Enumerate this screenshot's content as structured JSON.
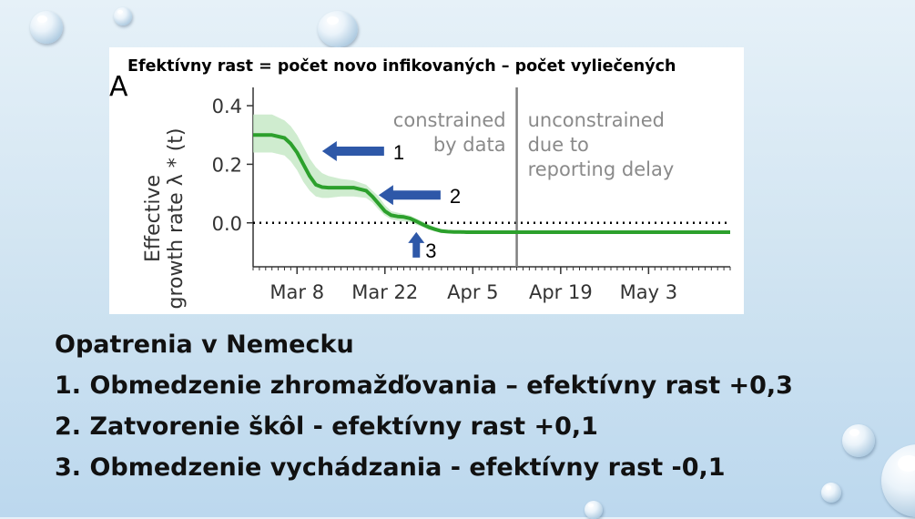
{
  "chart_data": {
    "type": "line",
    "title": "Efektívny rast = počet novo infikovaných – počet vyliečených",
    "panel_label": "A",
    "ylabel_line1": "Effective",
    "ylabel_line2": "growth rate λ * (t)",
    "yticks": [
      "0.4",
      "0.2",
      "0.0"
    ],
    "ylim": [
      -0.15,
      0.45
    ],
    "xticks": [
      "Mar 8",
      "Mar 22",
      "Apr 5",
      "Apr 19",
      "May 3"
    ],
    "x_range_days": [
      0,
      76
    ],
    "series": [
      {
        "color": "#2ca02c",
        "x": [
          0,
          3,
          5,
          6,
          7,
          8,
          9,
          10,
          11,
          12,
          14,
          16,
          18,
          19,
          20,
          21,
          22,
          23,
          24,
          25,
          26,
          27,
          28,
          29,
          30,
          31,
          32,
          33,
          34,
          35,
          36,
          40,
          50,
          60,
          70,
          76
        ],
        "y": [
          0.3,
          0.3,
          0.29,
          0.27,
          0.24,
          0.2,
          0.16,
          0.13,
          0.122,
          0.12,
          0.12,
          0.12,
          0.11,
          0.09,
          0.065,
          0.04,
          0.026,
          0.022,
          0.02,
          0.015,
          0.005,
          -0.005,
          -0.015,
          -0.022,
          -0.028,
          -0.03,
          -0.031,
          -0.031,
          -0.032,
          -0.032,
          -0.032,
          -0.032,
          -0.032,
          -0.032,
          -0.032,
          -0.032
        ],
        "band_upper": [
          0.37,
          0.37,
          0.35,
          0.33,
          0.3,
          0.26,
          0.22,
          0.19,
          0.17,
          0.16,
          0.15,
          0.145,
          0.13,
          0.11,
          0.09,
          0.06,
          0.04,
          0.035,
          0.03,
          0.025,
          0.015,
          0.005,
          -0.005,
          -0.015,
          -0.022,
          -0.026,
          -0.028,
          -0.029,
          -0.03,
          -0.03,
          -0.03,
          -0.03,
          -0.03,
          -0.03,
          -0.03,
          -0.03
        ],
        "band_lower": [
          0.24,
          0.24,
          0.23,
          0.21,
          0.18,
          0.14,
          0.11,
          0.09,
          0.085,
          0.085,
          0.09,
          0.09,
          0.085,
          0.07,
          0.045,
          0.025,
          0.012,
          0.008,
          0.005,
          0.002,
          -0.006,
          -0.014,
          -0.024,
          -0.03,
          -0.034,
          -0.035,
          -0.035,
          -0.035,
          -0.035,
          -0.035,
          -0.035,
          -0.035,
          -0.035,
          -0.035,
          -0.035,
          -0.035
        ]
      }
    ],
    "reference_line_y": 0.0,
    "vline_x": 42,
    "region_left_label": [
      "constrained",
      "by data"
    ],
    "region_right_label": [
      "unconstrained",
      "due to",
      "reporting delay"
    ],
    "annotations": [
      {
        "label": "1",
        "x": 11,
        "y": 0.245,
        "direction": "left"
      },
      {
        "label": "2",
        "x": 20,
        "y": 0.095,
        "direction": "left"
      },
      {
        "label": "3",
        "x": 26,
        "y": -0.075,
        "direction": "up"
      }
    ]
  },
  "text": {
    "heading": "Opatrenia v Nemecku",
    "items": [
      "1. Obmedzenie zhromažďovania – efektívny rast +0,3",
      "2. Zatvorenie škôl - efektívny rast +0,1",
      "3. Obmedzenie vychádzania - efektívny rast -0,1"
    ]
  },
  "colors": {
    "line": "#2ca02c",
    "band": "#bfe5bf",
    "arrow": "#2e58a8",
    "vline": "#808080",
    "region_text": "#8a8a8a"
  }
}
